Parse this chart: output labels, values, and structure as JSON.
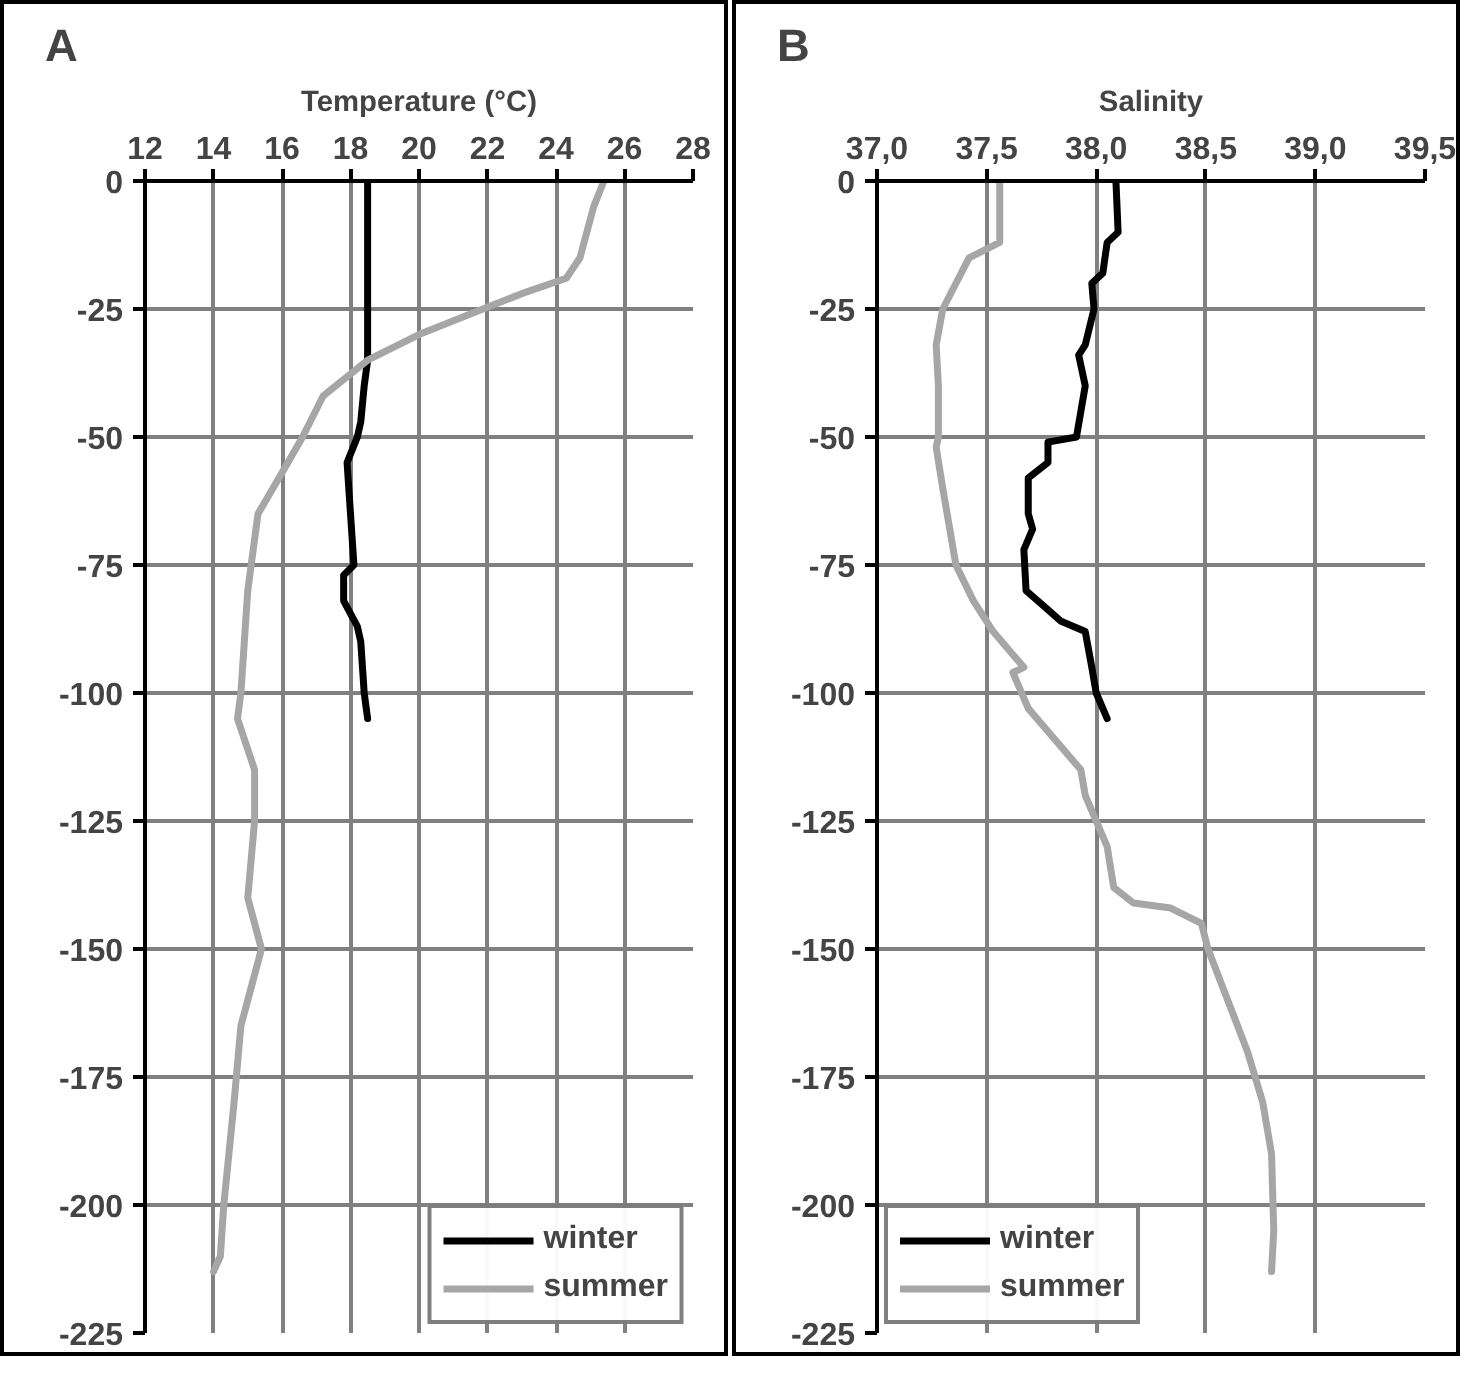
{
  "chart_data": [
    {
      "type": "line",
      "xlabel": "Temperature (°C)",
      "annotations": [
        "A"
      ],
      "xlim": [
        12,
        28
      ],
      "xticks": [
        12,
        14,
        16,
        18,
        20,
        22,
        24,
        26,
        28
      ],
      "ylim": [
        -225,
        0
      ],
      "yticks": [
        0,
        -25,
        -50,
        -75,
        -100,
        -125,
        -150,
        -175,
        -200,
        -225
      ],
      "grid": true,
      "legend": "bottom right",
      "series": [
        {
          "name": "winter",
          "color": "#000000",
          "x": [
            18.5,
            18.5,
            18.4,
            18.3,
            18.2,
            17.9,
            18.1,
            17.8,
            17.8,
            18.2,
            18.3,
            18.4,
            18.5
          ],
          "values": [
            0,
            -35,
            -40,
            -47,
            -50,
            -55,
            -75,
            -77,
            -82,
            -87,
            -90,
            -100,
            -105
          ]
        },
        {
          "name": "summer",
          "color": "#a6a6a6",
          "x": [
            25.4,
            25.1,
            24.7,
            24.3,
            23.0,
            21.5,
            20.0,
            18.5,
            17.2,
            16.6,
            16.0,
            15.3,
            15.0,
            14.8,
            14.7,
            15.2,
            15.2,
            15.0,
            15.4,
            14.8,
            14.6,
            14.3,
            14.2,
            14.0
          ],
          "values": [
            0,
            -5,
            -15,
            -19,
            -22,
            -26,
            -30,
            -35,
            -42,
            -50,
            -57,
            -65,
            -80,
            -100,
            -105,
            -115,
            -125,
            -140,
            -150,
            -165,
            -180,
            -200,
            -210,
            -213
          ]
        }
      ]
    },
    {
      "type": "line",
      "xlabel": "Salinity",
      "annotations": [
        "B"
      ],
      "xlim": [
        37,
        39.5
      ],
      "xticks": [
        {
          "value": 37,
          "label": "37,0"
        },
        {
          "value": 37.5,
          "label": "37,5"
        },
        {
          "value": 38,
          "label": "38,0"
        },
        {
          "value": 38.5,
          "label": "38,5"
        },
        {
          "value": 39,
          "label": "39,0"
        },
        {
          "value": 39.5,
          "label": "39,5"
        }
      ],
      "ylim": [
        -225,
        0
      ],
      "yticks": [
        0,
        -25,
        -50,
        -75,
        -100,
        -125,
        -150,
        -175,
        -200,
        -225
      ],
      "grid": true,
      "legend": "bottom left",
      "series": [
        {
          "name": "winter",
          "color": "#000000",
          "x": [
            38.09,
            38.1,
            38.05,
            38.03,
            37.98,
            37.99,
            37.95,
            37.92,
            37.95,
            37.93,
            37.91,
            37.78,
            37.78,
            37.69,
            37.69,
            37.71,
            37.67,
            37.68,
            37.76,
            37.84,
            37.95,
            37.98,
            38.0,
            38.05
          ],
          "values": [
            0,
            -10,
            -12,
            -18,
            -20,
            -25,
            -32,
            -34,
            -40,
            -45,
            -50,
            -51,
            -55,
            -58,
            -65,
            -68,
            -72,
            -80,
            -83,
            -86,
            -88,
            -95,
            -100,
            -105
          ]
        },
        {
          "name": "summer",
          "color": "#a6a6a6",
          "x": [
            37.56,
            37.56,
            37.42,
            37.3,
            37.27,
            37.28,
            37.28,
            37.27,
            37.3,
            37.36,
            37.44,
            37.53,
            37.67,
            37.62,
            37.69,
            37.83,
            37.93,
            37.95,
            38.0,
            38.05,
            38.08,
            38.17,
            38.34,
            38.48,
            38.51,
            38.6,
            38.69,
            38.76,
            38.8,
            38.81,
            38.8
          ],
          "values": [
            0,
            -12,
            -15,
            -25,
            -32,
            -40,
            -50,
            -52,
            -60,
            -75,
            -82,
            -88,
            -95,
            -96,
            -103,
            -110,
            -115,
            -120,
            -125,
            -130,
            -138,
            -141,
            -142,
            -145,
            -150,
            -160,
            -170,
            -180,
            -190,
            -205,
            -213
          ]
        }
      ]
    }
  ]
}
